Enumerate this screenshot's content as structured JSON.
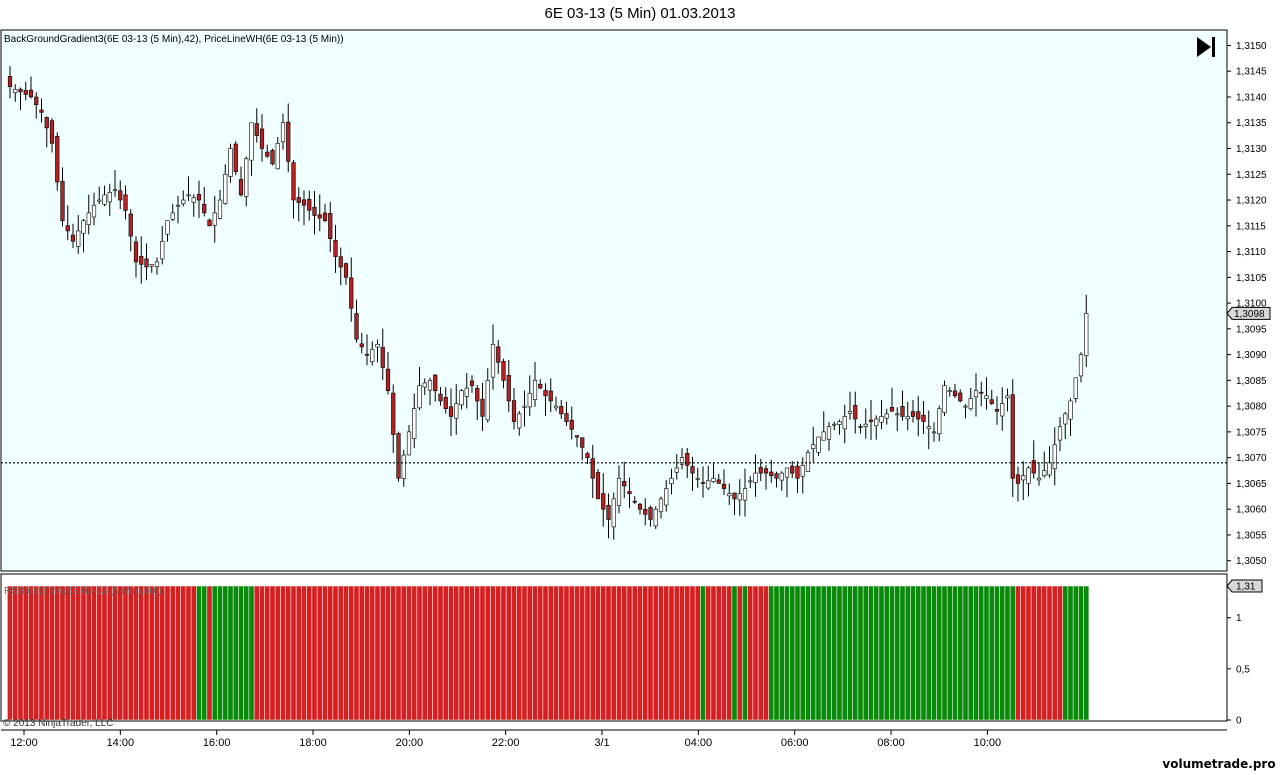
{
  "window_title": "6E 03-13 (5 Min)  01.03.2013",
  "indicators_label": "BackGroundGradient3(6E 03-13 (5 Min),42), PriceLineWH(6E 03-13 (5 Min))",
  "lower_panel_label": "RSBars(EMA(6E 03-13 (5 Min),60))",
  "copyright": "© 2013 NinjaTrader, LLC",
  "watermark": "volumetrade.pro",
  "play_icon": "skip-forward-icon",
  "colors": {
    "price_background": "#f0ffff",
    "up_candle": "#ffffff",
    "down_candle": "#b22222",
    "rs_up": "#0a8a0a",
    "rs_down": "#d42020",
    "price_line": "#000000"
  },
  "chart_data": [
    {
      "type": "candlestick",
      "title": "6E 03-13 (5 Min)  01.03.2013",
      "ylim": [
        1.3048,
        1.3153
      ],
      "y_ticks": [
        "1,3150",
        "1,3145",
        "1,3140",
        "1,3135",
        "1,3130",
        "1,3125",
        "1,3120",
        "1,3115",
        "1,3110",
        "1,3105",
        "1,3100",
        "1,3095",
        "1,3090",
        "1,3085",
        "1,3080",
        "1,3075",
        "1,3070",
        "1,3065",
        "1,3060",
        "1,3055",
        "1,3050"
      ],
      "x_ticks": [
        "12:00",
        "14:00",
        "16:00",
        "18:00",
        "20:00",
        "22:00",
        "3/1",
        "04:00",
        "06:00",
        "08:00",
        "10:00"
      ],
      "last_price_label": "1,3098",
      "price_line_level": 1.3069,
      "price_path": [
        [
          0,
          1.3142
        ],
        [
          4,
          1.314
        ],
        [
          6,
          1.3137
        ],
        [
          8,
          1.3131
        ],
        [
          10,
          1.3116
        ],
        [
          12,
          1.3112
        ],
        [
          14,
          1.3116
        ],
        [
          16,
          1.3119
        ],
        [
          18,
          1.3121
        ],
        [
          20,
          1.3122
        ],
        [
          22,
          1.3118
        ],
        [
          24,
          1.3108
        ],
        [
          26,
          1.3107
        ],
        [
          28,
          1.3108
        ],
        [
          30,
          1.3116
        ],
        [
          32,
          1.3119
        ],
        [
          34,
          1.3121
        ],
        [
          36,
          1.312
        ],
        [
          38,
          1.3115
        ],
        [
          40,
          1.312
        ],
        [
          42,
          1.313
        ],
        [
          44,
          1.3121
        ],
        [
          46,
          1.3135
        ],
        [
          48,
          1.313
        ],
        [
          50,
          1.3127
        ],
        [
          52,
          1.3135
        ],
        [
          54,
          1.312
        ],
        [
          56,
          1.3119
        ],
        [
          58,
          1.3117
        ],
        [
          60,
          1.3116
        ],
        [
          62,
          1.3109
        ],
        [
          64,
          1.3105
        ],
        [
          66,
          1.3093
        ],
        [
          68,
          1.309
        ],
        [
          70,
          1.3092
        ],
        [
          72,
          1.3083
        ],
        [
          74,
          1.3066
        ],
        [
          76,
          1.3075
        ],
        [
          78,
          1.3084
        ],
        [
          80,
          1.3085
        ],
        [
          82,
          1.3081
        ],
        [
          84,
          1.3078
        ],
        [
          86,
          1.3083
        ],
        [
          88,
          1.3084
        ],
        [
          90,
          1.3078
        ],
        [
          92,
          1.3092
        ],
        [
          94,
          1.3085
        ],
        [
          96,
          1.3077
        ],
        [
          98,
          1.308
        ],
        [
          100,
          1.3085
        ],
        [
          102,
          1.3082
        ],
        [
          104,
          1.308
        ],
        [
          106,
          1.3077
        ],
        [
          108,
          1.3074
        ],
        [
          110,
          1.307
        ],
        [
          112,
          1.3062
        ],
        [
          114,
          1.3058
        ],
        [
          116,
          1.3066
        ],
        [
          118,
          1.3063
        ],
        [
          120,
          1.306
        ],
        [
          122,
          1.3058
        ],
        [
          124,
          1.3062
        ],
        [
          126,
          1.3066
        ],
        [
          128,
          1.307
        ],
        [
          130,
          1.3067
        ],
        [
          132,
          1.3065
        ],
        [
          134,
          1.3066
        ],
        [
          136,
          1.3064
        ],
        [
          138,
          1.3062
        ],
        [
          140,
          1.3064
        ],
        [
          142,
          1.3067
        ],
        [
          144,
          1.3067
        ],
        [
          146,
          1.3066
        ],
        [
          148,
          1.3068
        ],
        [
          150,
          1.3066
        ],
        [
          152,
          1.3071
        ],
        [
          154,
          1.3074
        ],
        [
          156,
          1.3076
        ],
        [
          158,
          1.3077
        ],
        [
          160,
          1.3079
        ],
        [
          162,
          1.3076
        ],
        [
          164,
          1.3077
        ],
        [
          166,
          1.3078
        ],
        [
          168,
          1.3079
        ],
        [
          170,
          1.3078
        ],
        [
          172,
          1.3078
        ],
        [
          174,
          1.3077
        ],
        [
          176,
          1.3075
        ],
        [
          178,
          1.3084
        ],
        [
          180,
          1.3082
        ],
        [
          182,
          1.308
        ],
        [
          184,
          1.3083
        ],
        [
          186,
          1.3082
        ],
        [
          188,
          1.3079
        ],
        [
          190,
          1.3082
        ],
        [
          191,
          1.3066
        ],
        [
          192,
          1.3065
        ],
        [
          194,
          1.3068
        ],
        [
          196,
          1.3066
        ],
        [
          198,
          1.3069
        ],
        [
          200,
          1.3076
        ],
        [
          202,
          1.3081
        ],
        [
          204,
          1.309
        ],
        [
          205,
          1.3098
        ]
      ],
      "bar_count": 206
    },
    {
      "type": "bar",
      "title": "RSBars(EMA(6E 03-13 (5 Min),60))",
      "ylim": [
        0,
        1.31
      ],
      "y_ticks": [
        "1",
        "0,5",
        "0"
      ],
      "last_value_label": "1,31",
      "value": 1.31,
      "segments": [
        {
          "from": 0,
          "to": 35,
          "color": "down"
        },
        {
          "from": 36,
          "to": 37,
          "color": "up"
        },
        {
          "from": 38,
          "to": 38,
          "color": "down"
        },
        {
          "from": 39,
          "to": 46,
          "color": "up"
        },
        {
          "from": 47,
          "to": 131,
          "color": "down"
        },
        {
          "from": 132,
          "to": 132,
          "color": "up"
        },
        {
          "from": 133,
          "to": 137,
          "color": "down"
        },
        {
          "from": 138,
          "to": 138,
          "color": "up"
        },
        {
          "from": 139,
          "to": 139,
          "color": "down"
        },
        {
          "from": 140,
          "to": 140,
          "color": "up"
        },
        {
          "from": 141,
          "to": 144,
          "color": "down"
        },
        {
          "from": 145,
          "to": 191,
          "color": "up"
        },
        {
          "from": 192,
          "to": 200,
          "color": "down"
        },
        {
          "from": 201,
          "to": 205,
          "color": "up"
        }
      ]
    }
  ]
}
